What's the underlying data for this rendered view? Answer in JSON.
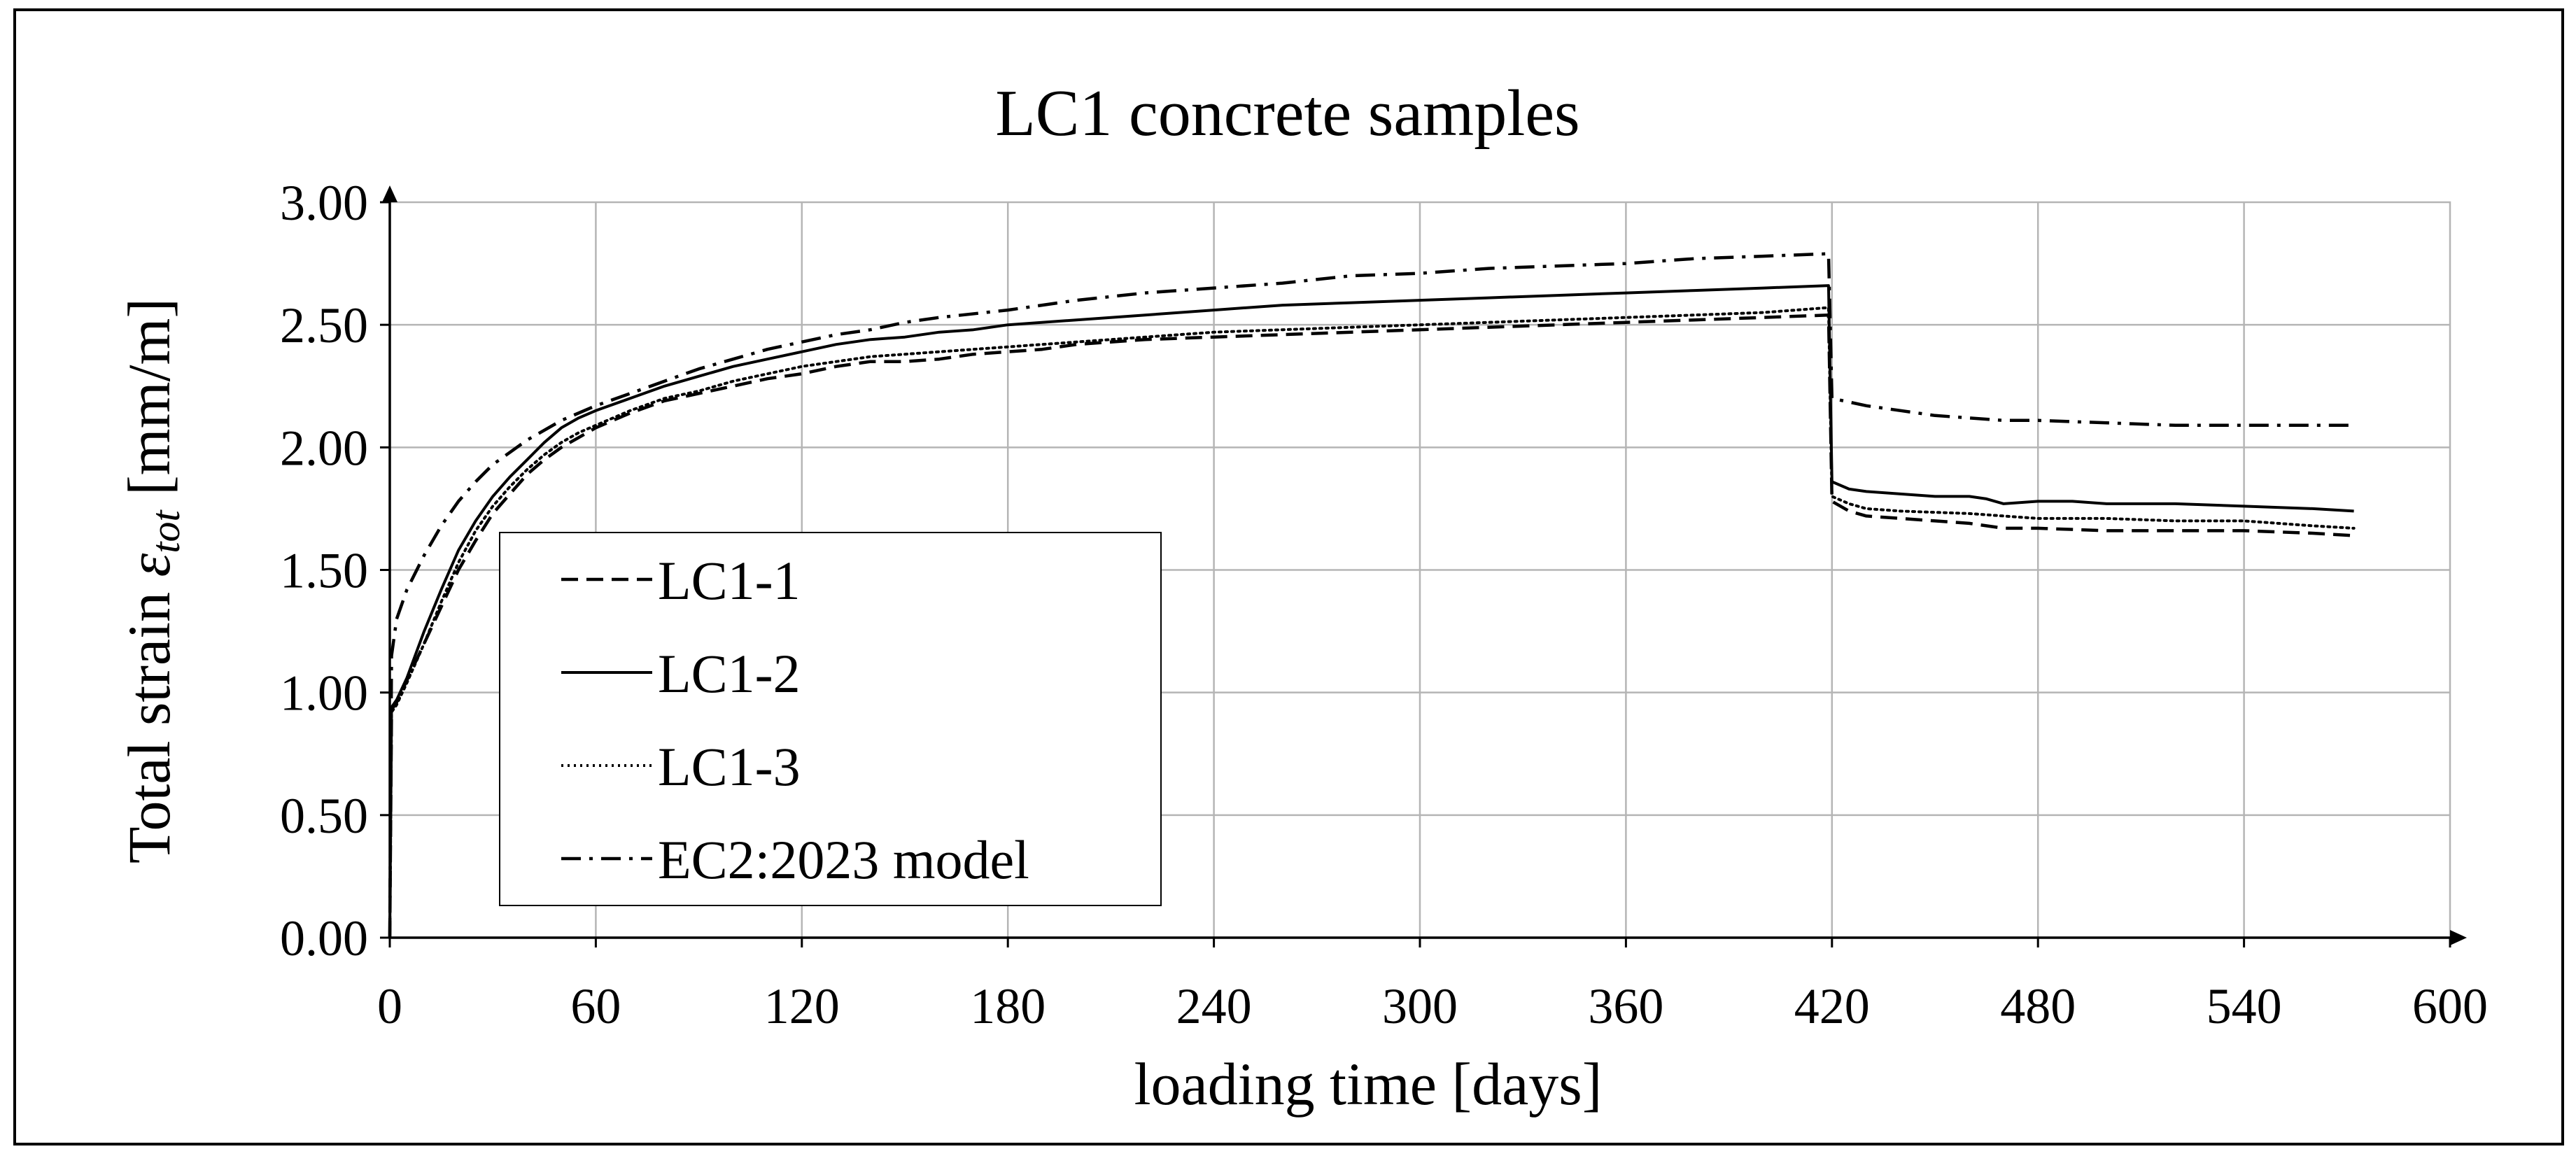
{
  "chart_data": {
    "type": "line",
    "title": "LC1 concrete samples",
    "xlabel": "loading time [days]",
    "ylabel_main": "Total strain ",
    "ylabel_symbol": "ε",
    "ylabel_subscript": "tot",
    "ylabel_unit": " [mm/m]",
    "xlim": [
      0,
      600
    ],
    "ylim": [
      0,
      3
    ],
    "x_ticks": [
      0,
      60,
      120,
      180,
      240,
      300,
      360,
      420,
      480,
      540,
      600
    ],
    "y_ticks": [
      0,
      0.5,
      1,
      1.5,
      2,
      2.5,
      3
    ],
    "x_tick_labels": [
      "0",
      "60",
      "120",
      "180",
      "240",
      "300",
      "360",
      "420",
      "480",
      "540",
      "600"
    ],
    "y_tick_labels": [
      "0.00",
      "0.50",
      "1.00",
      "1.50",
      "2.00",
      "2.50",
      "3.00"
    ],
    "grid": true,
    "legend_position": "left-lower",
    "series": [
      {
        "name": "LC1-1",
        "style": "dashed",
        "points": [
          [
            0,
            0
          ],
          [
            0.5,
            0.93
          ],
          [
            2,
            0.96
          ],
          [
            5,
            1.05
          ],
          [
            10,
            1.2
          ],
          [
            15,
            1.35
          ],
          [
            20,
            1.5
          ],
          [
            25,
            1.62
          ],
          [
            30,
            1.73
          ],
          [
            35,
            1.81
          ],
          [
            40,
            1.89
          ],
          [
            45,
            1.95
          ],
          [
            50,
            2.0
          ],
          [
            55,
            2.04
          ],
          [
            60,
            2.08
          ],
          [
            70,
            2.14
          ],
          [
            80,
            2.19
          ],
          [
            90,
            2.22
          ],
          [
            100,
            2.25
          ],
          [
            110,
            2.28
          ],
          [
            120,
            2.3
          ],
          [
            130,
            2.33
          ],
          [
            140,
            2.35
          ],
          [
            150,
            2.35
          ],
          [
            160,
            2.36
          ],
          [
            170,
            2.38
          ],
          [
            180,
            2.39
          ],
          [
            190,
            2.4
          ],
          [
            200,
            2.42
          ],
          [
            210,
            2.43
          ],
          [
            220,
            2.44
          ],
          [
            240,
            2.45
          ],
          [
            260,
            2.46
          ],
          [
            280,
            2.47
          ],
          [
            300,
            2.48
          ],
          [
            320,
            2.49
          ],
          [
            340,
            2.5
          ],
          [
            360,
            2.51
          ],
          [
            380,
            2.52
          ],
          [
            400,
            2.53
          ],
          [
            419,
            2.54
          ],
          [
            420,
            1.78
          ],
          [
            425,
            1.74
          ],
          [
            430,
            1.72
          ],
          [
            440,
            1.71
          ],
          [
            450,
            1.7
          ],
          [
            460,
            1.69
          ],
          [
            470,
            1.67
          ],
          [
            480,
            1.67
          ],
          [
            500,
            1.66
          ],
          [
            520,
            1.66
          ],
          [
            540,
            1.66
          ],
          [
            560,
            1.65
          ],
          [
            572,
            1.64
          ]
        ]
      },
      {
        "name": "LC1-2",
        "style": "solid",
        "points": [
          [
            0,
            0
          ],
          [
            0.5,
            0.94
          ],
          [
            2,
            0.97
          ],
          [
            5,
            1.06
          ],
          [
            10,
            1.25
          ],
          [
            15,
            1.42
          ],
          [
            20,
            1.58
          ],
          [
            25,
            1.7
          ],
          [
            30,
            1.8
          ],
          [
            35,
            1.88
          ],
          [
            40,
            1.95
          ],
          [
            45,
            2.02
          ],
          [
            50,
            2.08
          ],
          [
            55,
            2.12
          ],
          [
            60,
            2.15
          ],
          [
            70,
            2.2
          ],
          [
            80,
            2.25
          ],
          [
            90,
            2.29
          ],
          [
            100,
            2.33
          ],
          [
            110,
            2.36
          ],
          [
            120,
            2.39
          ],
          [
            130,
            2.42
          ],
          [
            140,
            2.44
          ],
          [
            150,
            2.45
          ],
          [
            160,
            2.47
          ],
          [
            170,
            2.48
          ],
          [
            180,
            2.5
          ],
          [
            200,
            2.52
          ],
          [
            220,
            2.54
          ],
          [
            240,
            2.56
          ],
          [
            260,
            2.58
          ],
          [
            280,
            2.59
          ],
          [
            300,
            2.6
          ],
          [
            320,
            2.61
          ],
          [
            340,
            2.62
          ],
          [
            360,
            2.63
          ],
          [
            380,
            2.64
          ],
          [
            400,
            2.65
          ],
          [
            419,
            2.66
          ],
          [
            420,
            1.86
          ],
          [
            425,
            1.83
          ],
          [
            430,
            1.82
          ],
          [
            440,
            1.81
          ],
          [
            450,
            1.8
          ],
          [
            460,
            1.8
          ],
          [
            465,
            1.79
          ],
          [
            470,
            1.77
          ],
          [
            480,
            1.78
          ],
          [
            490,
            1.78
          ],
          [
            500,
            1.77
          ],
          [
            520,
            1.77
          ],
          [
            540,
            1.76
          ],
          [
            560,
            1.75
          ],
          [
            572,
            1.74
          ]
        ]
      },
      {
        "name": "LC1-3",
        "style": "dotted",
        "points": [
          [
            0,
            0
          ],
          [
            0.5,
            0.92
          ],
          [
            2,
            0.95
          ],
          [
            5,
            1.04
          ],
          [
            10,
            1.2
          ],
          [
            15,
            1.37
          ],
          [
            20,
            1.53
          ],
          [
            25,
            1.66
          ],
          [
            30,
            1.76
          ],
          [
            35,
            1.84
          ],
          [
            40,
            1.91
          ],
          [
            45,
            1.97
          ],
          [
            50,
            2.02
          ],
          [
            55,
            2.06
          ],
          [
            60,
            2.09
          ],
          [
            70,
            2.15
          ],
          [
            80,
            2.2
          ],
          [
            90,
            2.23
          ],
          [
            100,
            2.27
          ],
          [
            110,
            2.3
          ],
          [
            120,
            2.33
          ],
          [
            130,
            2.35
          ],
          [
            140,
            2.37
          ],
          [
            150,
            2.38
          ],
          [
            160,
            2.39
          ],
          [
            170,
            2.4
          ],
          [
            180,
            2.41
          ],
          [
            200,
            2.43
          ],
          [
            220,
            2.45
          ],
          [
            240,
            2.47
          ],
          [
            260,
            2.48
          ],
          [
            280,
            2.49
          ],
          [
            300,
            2.5
          ],
          [
            320,
            2.51
          ],
          [
            340,
            2.52
          ],
          [
            360,
            2.53
          ],
          [
            380,
            2.54
          ],
          [
            400,
            2.55
          ],
          [
            419,
            2.57
          ],
          [
            420,
            1.8
          ],
          [
            425,
            1.77
          ],
          [
            430,
            1.75
          ],
          [
            440,
            1.74
          ],
          [
            460,
            1.73
          ],
          [
            480,
            1.71
          ],
          [
            500,
            1.71
          ],
          [
            520,
            1.7
          ],
          [
            540,
            1.7
          ],
          [
            560,
            1.68
          ],
          [
            572,
            1.67
          ]
        ]
      },
      {
        "name": "EC2:2023 model",
        "style": "dashdot",
        "points": [
          [
            0,
            0
          ],
          [
            0.5,
            1.15
          ],
          [
            2,
            1.3
          ],
          [
            5,
            1.42
          ],
          [
            10,
            1.56
          ],
          [
            15,
            1.68
          ],
          [
            20,
            1.78
          ],
          [
            25,
            1.86
          ],
          [
            30,
            1.93
          ],
          [
            40,
            2.03
          ],
          [
            50,
            2.11
          ],
          [
            60,
            2.17
          ],
          [
            70,
            2.22
          ],
          [
            80,
            2.27
          ],
          [
            90,
            2.32
          ],
          [
            100,
            2.36
          ],
          [
            110,
            2.4
          ],
          [
            120,
            2.43
          ],
          [
            130,
            2.46
          ],
          [
            140,
            2.48
          ],
          [
            150,
            2.51
          ],
          [
            160,
            2.53
          ],
          [
            180,
            2.56
          ],
          [
            200,
            2.6
          ],
          [
            220,
            2.63
          ],
          [
            240,
            2.65
          ],
          [
            260,
            2.67
          ],
          [
            280,
            2.7
          ],
          [
            300,
            2.71
          ],
          [
            320,
            2.73
          ],
          [
            340,
            2.74
          ],
          [
            360,
            2.75
          ],
          [
            380,
            2.77
          ],
          [
            400,
            2.78
          ],
          [
            419,
            2.79
          ],
          [
            420,
            2.2
          ],
          [
            430,
            2.17
          ],
          [
            440,
            2.15
          ],
          [
            450,
            2.13
          ],
          [
            460,
            2.12
          ],
          [
            470,
            2.11
          ],
          [
            480,
            2.11
          ],
          [
            500,
            2.1
          ],
          [
            520,
            2.09
          ],
          [
            540,
            2.09
          ],
          [
            560,
            2.09
          ],
          [
            572,
            2.09
          ]
        ]
      }
    ]
  }
}
